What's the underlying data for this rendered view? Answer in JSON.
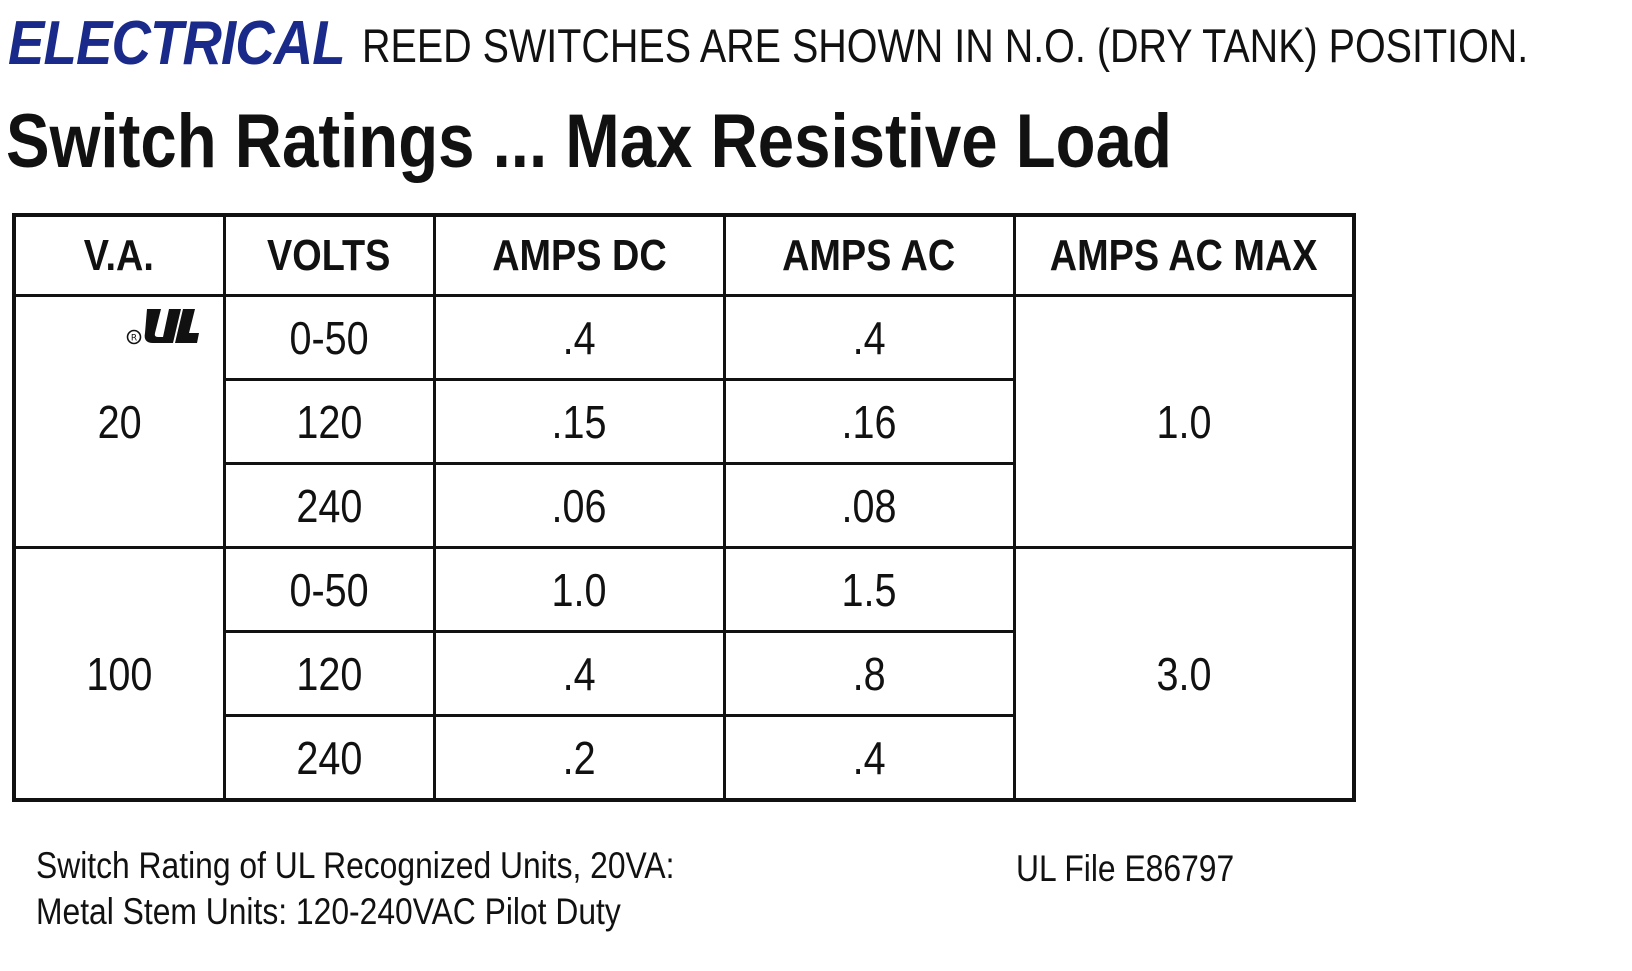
{
  "header": {
    "brand": "ELECTRICAL",
    "note": "REED SWITCHES ARE SHOWN IN N.O. (DRY TANK) POSITION."
  },
  "title": "Switch Ratings ... Max Resistive Load",
  "table": {
    "headers": [
      "V.A.",
      "VOLTS",
      "AMPS DC",
      "AMPS AC",
      "AMPS AC MAX"
    ],
    "groups": [
      {
        "va": "20",
        "amps_ac_max": "1.0",
        "rows": [
          {
            "volts": "0-50",
            "amps_dc": ".4",
            "amps_ac": ".4"
          },
          {
            "volts": "120",
            "amps_dc": ".15",
            "amps_ac": ".16"
          },
          {
            "volts": "240",
            "amps_dc": ".06",
            "amps_ac": ".08"
          }
        ]
      },
      {
        "va": "100",
        "amps_ac_max": "3.0",
        "rows": [
          {
            "volts": "0-50",
            "amps_dc": "1.0",
            "amps_ac": "1.5"
          },
          {
            "volts": "120",
            "amps_dc": ".4",
            "amps_ac": ".8"
          },
          {
            "volts": "240",
            "amps_dc": ".2",
            "amps_ac": ".4"
          }
        ]
      }
    ],
    "ul_mark_icon": "ul-recognized-icon"
  },
  "footer": {
    "line1": "Switch Rating of UL Recognized Units, 20VA:",
    "line2": "Metal Stem Units: 120-240VAC Pilot Duty",
    "ul_file": "UL File E86797"
  },
  "colors": {
    "brand": "#1a2a8a",
    "text": "#111111",
    "border": "#111111"
  }
}
